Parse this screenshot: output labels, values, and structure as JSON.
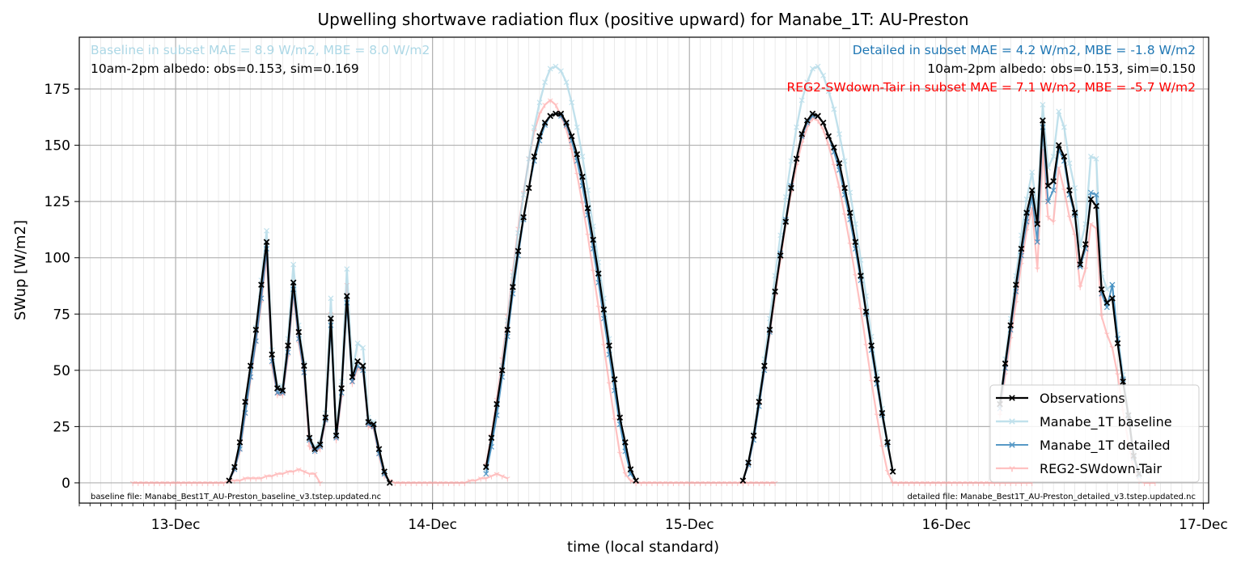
{
  "chart_data": {
    "type": "line",
    "title": "Upwelling shortwave radiation flux (positive upward) for Manabe_1T: AU-Preston",
    "xlabel": "time (local standard)",
    "ylabel": "SWup [W/m2]",
    "xlim": [
      "2016-12-12T15:00",
      "2016-12-17T00:30"
    ],
    "ylim": [
      -9,
      198
    ],
    "yticks": [
      0,
      25,
      50,
      75,
      100,
      125,
      150,
      175
    ],
    "xtick_labels": [
      "13-Dec",
      "14-Dec",
      "15-Dec",
      "16-Dec",
      "17-Dec"
    ],
    "grid": true,
    "legend": {
      "position": "bottom-right",
      "entries": [
        "Observations",
        "Manabe_1T baseline",
        "Manabe_1T detailed",
        "REG2-SWdown-Tair"
      ]
    },
    "annotations": {
      "top_left_1": "Baseline in subset MAE = 8.9 W/m2, MBE = 8.0 W/m2",
      "top_left_2": "10am-2pm albedo: obs=0.153, sim=0.169",
      "top_right_1": "Detailed in subset MAE = 4.2 W/m2, MBE = -1.8 W/m2",
      "top_right_2": "10am-2pm albedo: obs=0.153, sim=0.150",
      "top_right_3": "REG2-SWdown-Tair in subset MAE = 7.1 W/m2, MBE = -5.7 W/m2",
      "bottom_left": "baseline file: Manabe_Best1T_AU-Preston_baseline_v3.tstep.updated.nc",
      "bottom_right": "detailed file: Manabe_Best1T_AU-Preston_detailed_v3.tstep.updated.nc"
    },
    "series": [
      {
        "name": "Observations",
        "color": "#000000",
        "marker": "x",
        "segments": [
          {
            "start": "2016-12-13T05:00",
            "step_hours": 0.5,
            "values": [
              1,
              7,
              18,
              36,
              52,
              68,
              88,
              107,
              57,
              42,
              41,
              61,
              89,
              67,
              52,
              20,
              15,
              17,
              29,
              73,
              21,
              42,
              83,
              47,
              54,
              52,
              27,
              26,
              15,
              5,
              0
            ]
          },
          {
            "start": "2016-12-14T05:00",
            "step_hours": 0.5,
            "values": [
              7,
              20,
              35,
              50,
              68,
              87,
              103,
              118,
              131,
              145,
              154,
              160,
              163,
              164,
              164,
              160,
              154,
              146,
              136,
              122,
              108,
              93,
              77,
              61,
              46,
              29,
              18,
              6,
              1
            ]
          },
          {
            "start": "2016-12-15T05:00",
            "step_hours": 0.5,
            "values": [
              1,
              9,
              21,
              36,
              52,
              68,
              85,
              101,
              116,
              131,
              144,
              155,
              161,
              164,
              163,
              160,
              154,
              149,
              142,
              131,
              120,
              107,
              92,
              76,
              61,
              46,
              31,
              18,
              5
            ]
          },
          {
            "start": "2016-12-16T05:00",
            "step_hours": 0.5,
            "values": [
              35,
              53,
              70,
              88,
              104,
              120,
              130,
              115,
              161,
              132,
              134,
              150,
              145,
              130,
              120,
              97,
              106,
              126,
              123,
              86,
              80,
              82,
              62,
              45,
              30,
              12,
              4
            ]
          }
        ]
      },
      {
        "name": "Manabe_1T baseline",
        "color": "#add8e6",
        "marker": "x",
        "segments": [
          {
            "start": "2016-12-13T05:00",
            "step_hours": 0.5,
            "values": [
              1,
              7,
              16,
              33,
              50,
              69,
              90,
              112,
              59,
              43,
              43,
              64,
              97,
              70,
              53,
              20,
              16,
              18,
              31,
              82,
              23,
              45,
              95,
              49,
              62,
              60,
              29,
              27,
              14,
              4,
              0
            ]
          },
          {
            "start": "2016-12-14T05:00",
            "step_hours": 0.5,
            "values": [
              6,
              18,
              34,
              52,
              72,
              92,
              111,
              128,
              144,
              158,
              169,
              178,
              184,
              185,
              183,
              178,
              169,
              158,
              145,
              130,
              114,
              98,
              82,
              64,
              46,
              29,
              16,
              5,
              1
            ]
          },
          {
            "start": "2016-12-15T05:00",
            "step_hours": 0.5,
            "values": [
              1,
              9,
              22,
              38,
              55,
              73,
              92,
              110,
              127,
              143,
              158,
              170,
              178,
              184,
              185,
              181,
              174,
              166,
              155,
              143,
              129,
              115,
              99,
              83,
              65,
              49,
              33,
              18,
              5
            ]
          },
          {
            "start": "2016-12-16T05:00",
            "step_hours": 0.5,
            "values": [
              36,
              55,
              73,
              92,
              110,
              126,
              138,
              120,
              168,
              140,
              145,
              165,
              158,
              142,
              131,
              105,
              115,
              145,
              144,
              93,
              86,
              88,
              66,
              48,
              31,
              13,
              4
            ]
          }
        ]
      },
      {
        "name": "Manabe_1T detailed",
        "color": "#1f77b4",
        "marker": "x",
        "segments": [
          {
            "start": "2016-12-13T05:00",
            "step_hours": 0.5,
            "values": [
              1,
              6,
              15,
              31,
              47,
              63,
              82,
              104,
              54,
              40,
              40,
              58,
              86,
              64,
              49,
              19,
              14,
              16,
              28,
              70,
              20,
              40,
              80,
              45,
              52,
              50,
              26,
              25,
              13,
              4,
              0
            ]
          },
          {
            "start": "2016-12-14T05:00",
            "step_hours": 0.5,
            "values": [
              4,
              16,
              30,
              47,
              65,
              84,
              101,
              117,
              131,
              143,
              152,
              159,
              163,
              164,
              163,
              159,
              152,
              143,
              132,
              119,
              104,
              89,
              73,
              57,
              41,
              26,
              14,
              4,
              1
            ]
          },
          {
            "start": "2016-12-15T05:00",
            "step_hours": 0.5,
            "values": [
              1,
              8,
              19,
              34,
              50,
              67,
              85,
              102,
              117,
              132,
              144,
              154,
              160,
              163,
              163,
              160,
              154,
              147,
              139,
              128,
              117,
              104,
              90,
              75,
              59,
              44,
              30,
              17,
              5
            ]
          },
          {
            "start": "2016-12-16T05:00",
            "step_hours": 0.5,
            "values": [
              33,
              51,
              68,
              85,
              101,
              116,
              127,
              107,
              158,
              125,
              130,
              148,
              143,
              128,
              119,
              96,
              104,
              129,
              128,
              84,
              78,
              88,
              64,
              46,
              29,
              11,
              3
            ]
          }
        ]
      },
      {
        "name": "REG2-SWdown-Tair",
        "color": "#ff9999",
        "marker": "tri_down",
        "segments": [
          {
            "start": "2016-12-12T20:00",
            "step_hours": 0.5,
            "values": [
              0,
              0,
              0,
              0,
              0,
              0,
              0,
              0,
              0,
              0,
              0,
              0,
              0,
              0,
              0,
              0,
              0,
              0,
              1,
              1,
              1,
              2,
              2,
              2,
              2,
              3,
              3,
              4,
              4,
              5,
              5,
              6,
              5,
              4,
              4,
              0
            ]
          },
          {
            "start": "2016-12-13T05:00",
            "step_hours": 0.5,
            "values": [
              1,
              6,
              14,
              30,
              46,
              62,
              80,
              101,
              52,
              39,
              39,
              56,
              84,
              62,
              48,
              16,
              14,
              15,
              27,
              75,
              19,
              38,
              88,
              44,
              51,
              50,
              25,
              24,
              12,
              3,
              1,
              0,
              0,
              0,
              0,
              0,
              0,
              0,
              0,
              0,
              0,
              0,
              0,
              0,
              0,
              1,
              1,
              2,
              2,
              3,
              4,
              3,
              2
            ]
          },
          {
            "start": "2016-12-14T05:00",
            "step_hours": 0.5,
            "values": [
              8,
              21,
              37,
              55,
              74,
              94,
              113,
              129,
              144,
              156,
              164,
              168,
              170,
              168,
              163,
              157,
              148,
              137,
              124,
              110,
              94,
              78,
              61,
              44,
              28,
              13,
              4,
              1,
              0,
              0,
              0,
              0,
              0,
              0,
              0,
              0,
              0,
              0,
              0,
              0,
              0,
              0,
              0,
              0,
              0,
              0,
              0,
              0,
              0,
              0,
              0,
              0,
              0,
              0,
              0
            ]
          },
          {
            "start": "2016-12-15T05:00",
            "step_hours": 0.5,
            "values": [
              1,
              8,
              20,
              35,
              50,
              66,
              83,
              99,
              115,
              129,
              141,
              151,
              158,
              162,
              161,
              157,
              150,
              141,
              131,
              119,
              106,
              92,
              77,
              61,
              45,
              30,
              16,
              5,
              0,
              0,
              0,
              0,
              0,
              0,
              0,
              0,
              0,
              0,
              0,
              0,
              0,
              0,
              0,
              0,
              0,
              0,
              0,
              0,
              0,
              0,
              0,
              0,
              0,
              0,
              0
            ]
          },
          {
            "start": "2016-12-16T05:00",
            "step_hours": 0.5,
            "values": [
              30,
              48,
              64,
              80,
              97,
              112,
              122,
              95,
              148,
              118,
              116,
              140,
              130,
              118,
              110,
              87,
              95,
              115,
              113,
              74,
              66,
              60,
              48,
              32,
              18,
              6,
              1,
              0,
              0,
              0
            ]
          }
        ]
      }
    ]
  }
}
